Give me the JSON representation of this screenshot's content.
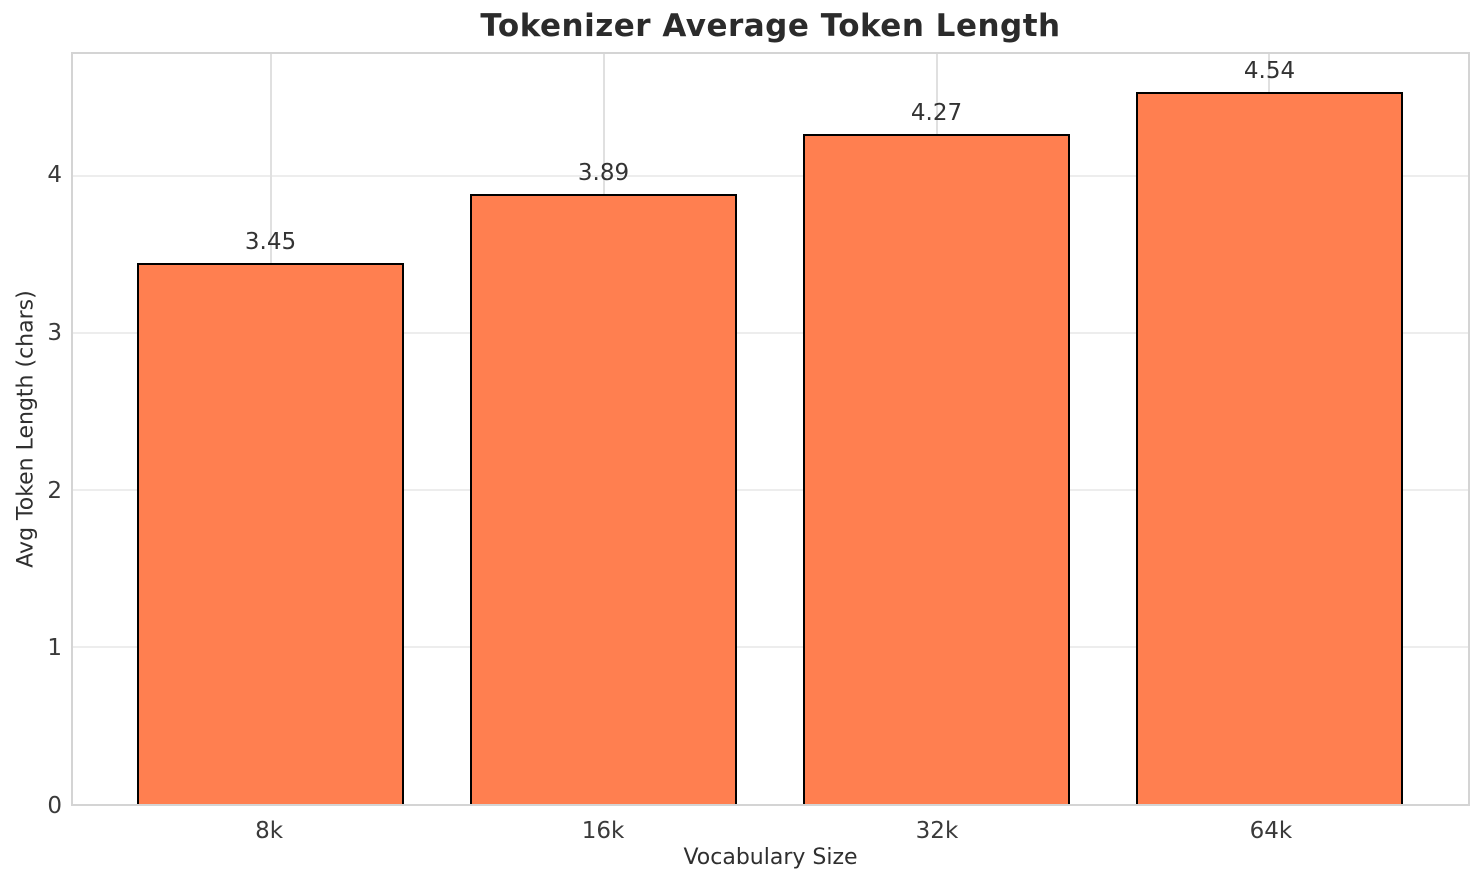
{
  "chart_data": {
    "type": "bar",
    "title": "Tokenizer Average Token Length",
    "xlabel": "Vocabulary Size",
    "ylabel": "Avg Token Length (chars)",
    "categories": [
      "8k",
      "16k",
      "32k",
      "64k"
    ],
    "values": [
      3.45,
      3.89,
      4.27,
      4.54
    ],
    "value_labels": [
      "3.45",
      "3.89",
      "4.27",
      "4.54"
    ],
    "yticks": [
      0,
      1,
      2,
      3,
      4
    ],
    "ylim": [
      0,
      4.78
    ],
    "grid": true,
    "legend_position": "none",
    "colors": {
      "bar_fill": "#FF7F50",
      "bar_edge": "#000000",
      "background": "#ffffff",
      "grid_horizontal": "#ededed",
      "grid_vertical": "#e0e0e0",
      "spine": "#d4d4d4",
      "title_text": "#2b2b2b",
      "tick_text": "#3a3a3a"
    }
  }
}
